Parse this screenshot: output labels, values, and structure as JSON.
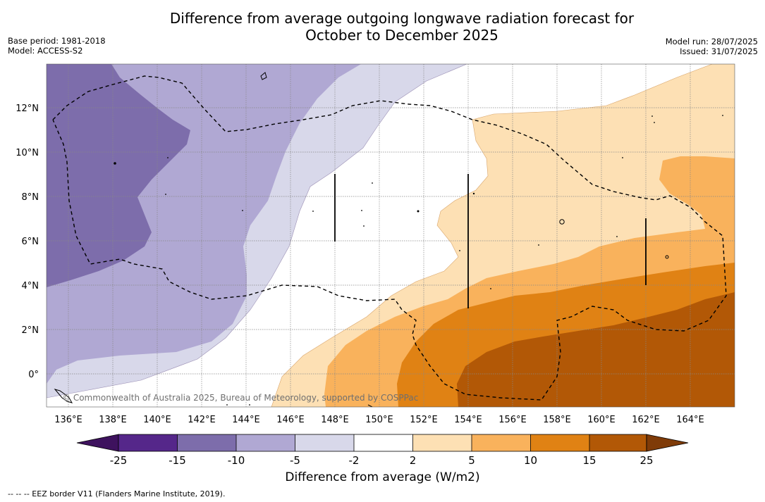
{
  "title_line1": "Difference from average outgoing longwave radiation forecast for",
  "title_line2": "October to December 2025",
  "meta_left": [
    "Base period: 1981-2018",
    "Model: ACCESS-S2"
  ],
  "meta_right": [
    "Model run: 28/07/2025",
    "Issued: 31/07/2025"
  ],
  "credit": "© Commonwealth of Australia 2025, Bureau of Meteorology, supported by COSPPac",
  "x_ticks": [
    "136°E",
    "138°E",
    "140°E",
    "142°E",
    "144°E",
    "146°E",
    "148°E",
    "150°E",
    "152°E",
    "154°E",
    "156°E",
    "158°E",
    "160°E",
    "162°E",
    "164°E"
  ],
  "y_ticks": [
    "12°N",
    "10°N",
    "8°N",
    "6°N",
    "4°N",
    "2°N",
    "0°"
  ],
  "colorbar": {
    "title": "Difference from average (W/m2)",
    "labels": [
      "-25",
      "-15",
      "-10",
      "-5",
      "-2",
      "2",
      "5",
      "10",
      "15",
      "25"
    ],
    "colors": [
      "#3e125e",
      "#55278a",
      "#7d6dab",
      "#b0a8d3",
      "#d8d8ea",
      "#ffffff",
      "#fde0b4",
      "#f9b25c",
      "#e08214",
      "#b25806",
      "#7f3b08"
    ]
  },
  "footer": "--  --  -- EEZ border V11 (Flanders Marine Institute, 2019)."
}
